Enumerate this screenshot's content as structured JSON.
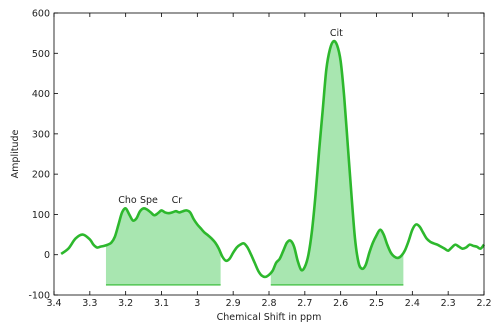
{
  "chart_data": {
    "type": "line",
    "xlabel": "Chemical Shift in ppm",
    "ylabel": "Amplitude",
    "xlim": [
      3.4,
      2.2
    ],
    "ylim": [
      -100,
      600
    ],
    "x_reversed": true,
    "grid": false,
    "x_ticks": [
      3.4,
      3.3,
      3.2,
      3.1,
      3.0,
      2.9,
      2.8,
      2.7,
      2.6,
      2.5,
      2.4,
      2.3,
      2.2
    ],
    "x_tick_labels": [
      "3.4",
      "3.3",
      "3.2",
      "3.1",
      "3",
      "2.9",
      "2.8",
      "2.7",
      "2.6",
      "2.5",
      "2.4",
      "2.3",
      "2.2"
    ],
    "y_ticks": [
      -100,
      0,
      100,
      200,
      300,
      400,
      500,
      600
    ],
    "y_tick_labels": [
      "-100",
      "0",
      "100",
      "200",
      "300",
      "400",
      "500",
      "600"
    ],
    "series": [
      {
        "color": "#2db82d",
        "x": [
          3.38,
          3.36,
          3.34,
          3.32,
          3.3,
          3.29,
          3.28,
          3.27,
          3.26,
          3.25,
          3.24,
          3.23,
          3.22,
          3.21,
          3.2,
          3.19,
          3.18,
          3.17,
          3.16,
          3.15,
          3.14,
          3.13,
          3.12,
          3.11,
          3.1,
          3.09,
          3.08,
          3.07,
          3.06,
          3.05,
          3.04,
          3.03,
          3.02,
          3.01,
          3.0,
          2.99,
          2.98,
          2.97,
          2.96,
          2.95,
          2.94,
          2.93,
          2.92,
          2.91,
          2.9,
          2.89,
          2.88,
          2.87,
          2.86,
          2.85,
          2.84,
          2.83,
          2.82,
          2.81,
          2.8,
          2.79,
          2.78,
          2.77,
          2.76,
          2.75,
          2.74,
          2.73,
          2.72,
          2.71,
          2.7,
          2.69,
          2.68,
          2.67,
          2.66,
          2.65,
          2.64,
          2.63,
          2.62,
          2.61,
          2.6,
          2.59,
          2.58,
          2.57,
          2.56,
          2.55,
          2.54,
          2.53,
          2.52,
          2.51,
          2.5,
          2.49,
          2.48,
          2.47,
          2.46,
          2.45,
          2.44,
          2.43,
          2.42,
          2.41,
          2.4,
          2.39,
          2.38,
          2.37,
          2.36,
          2.35,
          2.34,
          2.33,
          2.32,
          2.31,
          2.3,
          2.29,
          2.28,
          2.27,
          2.26,
          2.25,
          2.24,
          2.23,
          2.22,
          2.21,
          2.2
        ],
        "y": [
          2,
          15,
          40,
          50,
          38,
          25,
          18,
          20,
          22,
          25,
          30,
          45,
          75,
          105,
          115,
          100,
          85,
          90,
          108,
          115,
          112,
          105,
          98,
          103,
          110,
          105,
          103,
          105,
          108,
          105,
          108,
          110,
          105,
          88,
          75,
          65,
          55,
          48,
          40,
          30,
          15,
          -5,
          -15,
          -10,
          5,
          18,
          25,
          28,
          18,
          0,
          -20,
          -40,
          -52,
          -55,
          -50,
          -40,
          -20,
          -10,
          10,
          30,
          35,
          20,
          -15,
          -38,
          -30,
          0,
          60,
          150,
          260,
          360,
          460,
          510,
          530,
          520,
          480,
          390,
          270,
          150,
          40,
          -20,
          -35,
          -25,
          5,
          30,
          48,
          62,
          50,
          25,
          5,
          -5,
          -8,
          -2,
          12,
          35,
          62,
          75,
          70,
          55,
          40,
          32,
          28,
          25,
          20,
          15,
          10,
          18,
          25,
          20,
          15,
          18,
          25,
          22,
          20,
          15,
          25
        ]
      }
    ],
    "shaded_regions": [
      {
        "x_start": 3.255,
        "x_end": 2.935,
        "y_bottom": -75,
        "color": "#a8e6b0"
      },
      {
        "x_start": 2.795,
        "x_end": 2.425,
        "y_bottom": -75,
        "color": "#a8e6b0"
      }
    ],
    "annotations": [
      {
        "text": "Cho",
        "x": 3.195,
        "y": 128
      },
      {
        "text": "Spe",
        "x": 3.135,
        "y": 128
      },
      {
        "text": "Cr",
        "x": 3.057,
        "y": 128
      },
      {
        "text": "Cit",
        "x": 2.612,
        "y": 543
      }
    ]
  }
}
